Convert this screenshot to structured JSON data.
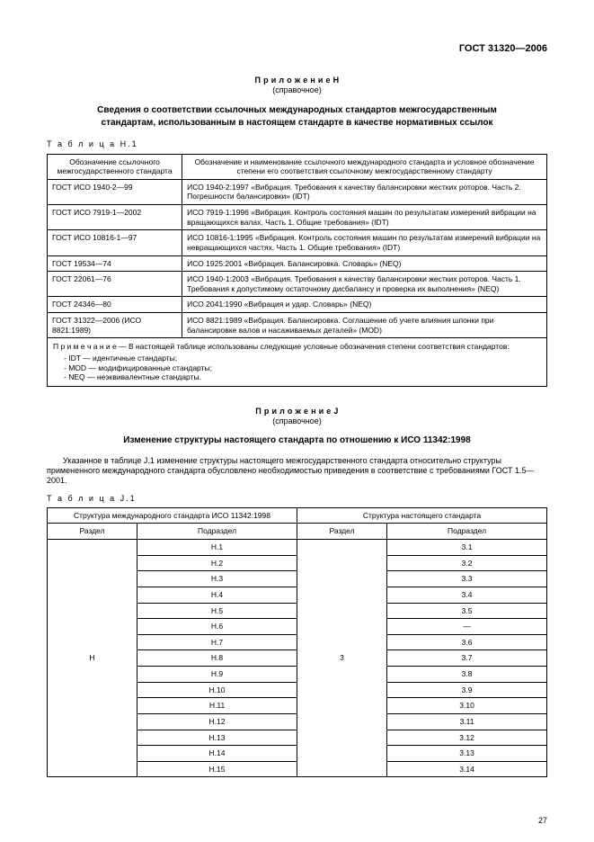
{
  "header": {
    "doc_number": "ГОСТ 31320—2006"
  },
  "appendixH": {
    "label": "П р и л о ж е н и е Н",
    "sub": "(справочное)",
    "title": "Сведения о соответствии ссылочных международных стандартов межгосударственным стандартам, использованным в настоящем стандарте в качестве нормативных ссылок",
    "table_caption": "Т а б л и ц а  Н.1",
    "col1": "Обозначение ссылочного межгосударственного стандарта",
    "col2": "Обозначение и наименование ссылочного международного стандарта и условное обозначение степени его соответствия ссылочному межгосударственному стандарту",
    "rows": [
      {
        "a": "ГОСТ ИСО 1940-2—99",
        "b": "ИСО 1940-2:1997 «Вибрация. Требования к качеству балансировки жестких роторов. Часть 2. Погрешности балансировки» (IDT)"
      },
      {
        "a": "ГОСТ ИСО 7919-1—2002",
        "b": "ИСО 7919-1:1996 «Вибрация. Контроль состояния машин по результатам измерений вибрации на вращающихся валах. Часть 1. Общие требования» (IDT)"
      },
      {
        "a": "ГОСТ ИСО 10816-1—97",
        "b": "ИСО 10816-1:1995 «Вибрация. Контроль состояния машин по результатам измерений вибрации на невращающихся частях. Часть 1. Общие требования» (IDT)"
      },
      {
        "a": "ГОСТ 19534—74",
        "b": "ИСО 1925:2001 «Вибрация. Балансировка. Словарь» (NEQ)"
      },
      {
        "a": "ГОСТ 22061—76",
        "b": "ИСО 1940-1:2003 «Вибрация. Требования к качеству балансировки жестких роторов. Часть 1. Требования к допустимому остаточному дисбалансу и проверка их выполнения» (NEQ)"
      },
      {
        "a": "ГОСТ 24346—80",
        "b": "ИСО 2041:1990 «Вибрация и удар. Словарь» (NEQ)"
      },
      {
        "a": "ГОСТ 31322—2006 (ИСО 8821:1989)",
        "b": "ИСО 8821:1989 «Вибрация. Балансировка. Соглашение об учете влияния шпонки при балансировке валов и насаживаемых деталей» (MOD)"
      }
    ],
    "note_head": "П р и м е ч а н и е — В настоящей таблице использованы следующие условные обозначения степени соответствия стандартов:",
    "note_items": [
      "IDT — идентичные стандарты;",
      "MOD — модифицированные стандарты;",
      "NEQ — неэквивалентные стандарты."
    ]
  },
  "appendixJ": {
    "label": "П р и л о ж е н и е J",
    "sub": "(справочное)",
    "title": "Изменение структуры настоящего стандарта по отношению к ИСО 11342:1998",
    "para": "Указанное в таблице J.1 изменение структуры настоящего межгосударственного стандарта относительно структуры примененного международного стандарта обусловлено необходимостью приведения в соответствие с требованиями ГОСТ 1.5—2001.",
    "table_caption": "Т а б л и ц а  J.1",
    "h1": "Структура международного стандарта ИСО 11342:1998",
    "h2": "Структура настоящего стандарта",
    "sub1": "Раздел",
    "sub2": "Подраздел",
    "sub3": "Раздел",
    "sub4": "Подраздел",
    "razdel_left": "H",
    "razdel_right": "3",
    "rows": [
      {
        "l": "Н.1",
        "r": "3.1"
      },
      {
        "l": "Н.2",
        "r": "3.2"
      },
      {
        "l": "Н.3",
        "r": "3.3"
      },
      {
        "l": "Н.4",
        "r": "3.4"
      },
      {
        "l": "Н.5",
        "r": "3.5"
      },
      {
        "l": "Н.6",
        "r": "—"
      },
      {
        "l": "Н.7",
        "r": "3.6"
      },
      {
        "l": "Н.8",
        "r": "3.7"
      },
      {
        "l": "Н.9",
        "r": "3.8"
      },
      {
        "l": "Н.10",
        "r": "3.9"
      },
      {
        "l": "Н.11",
        "r": "3.10"
      },
      {
        "l": "Н.12",
        "r": "3.11"
      },
      {
        "l": "Н.13",
        "r": "3.12"
      },
      {
        "l": "Н.14",
        "r": "3.13"
      },
      {
        "l": "Н.15",
        "r": "3.14"
      }
    ]
  },
  "page_number": "27"
}
